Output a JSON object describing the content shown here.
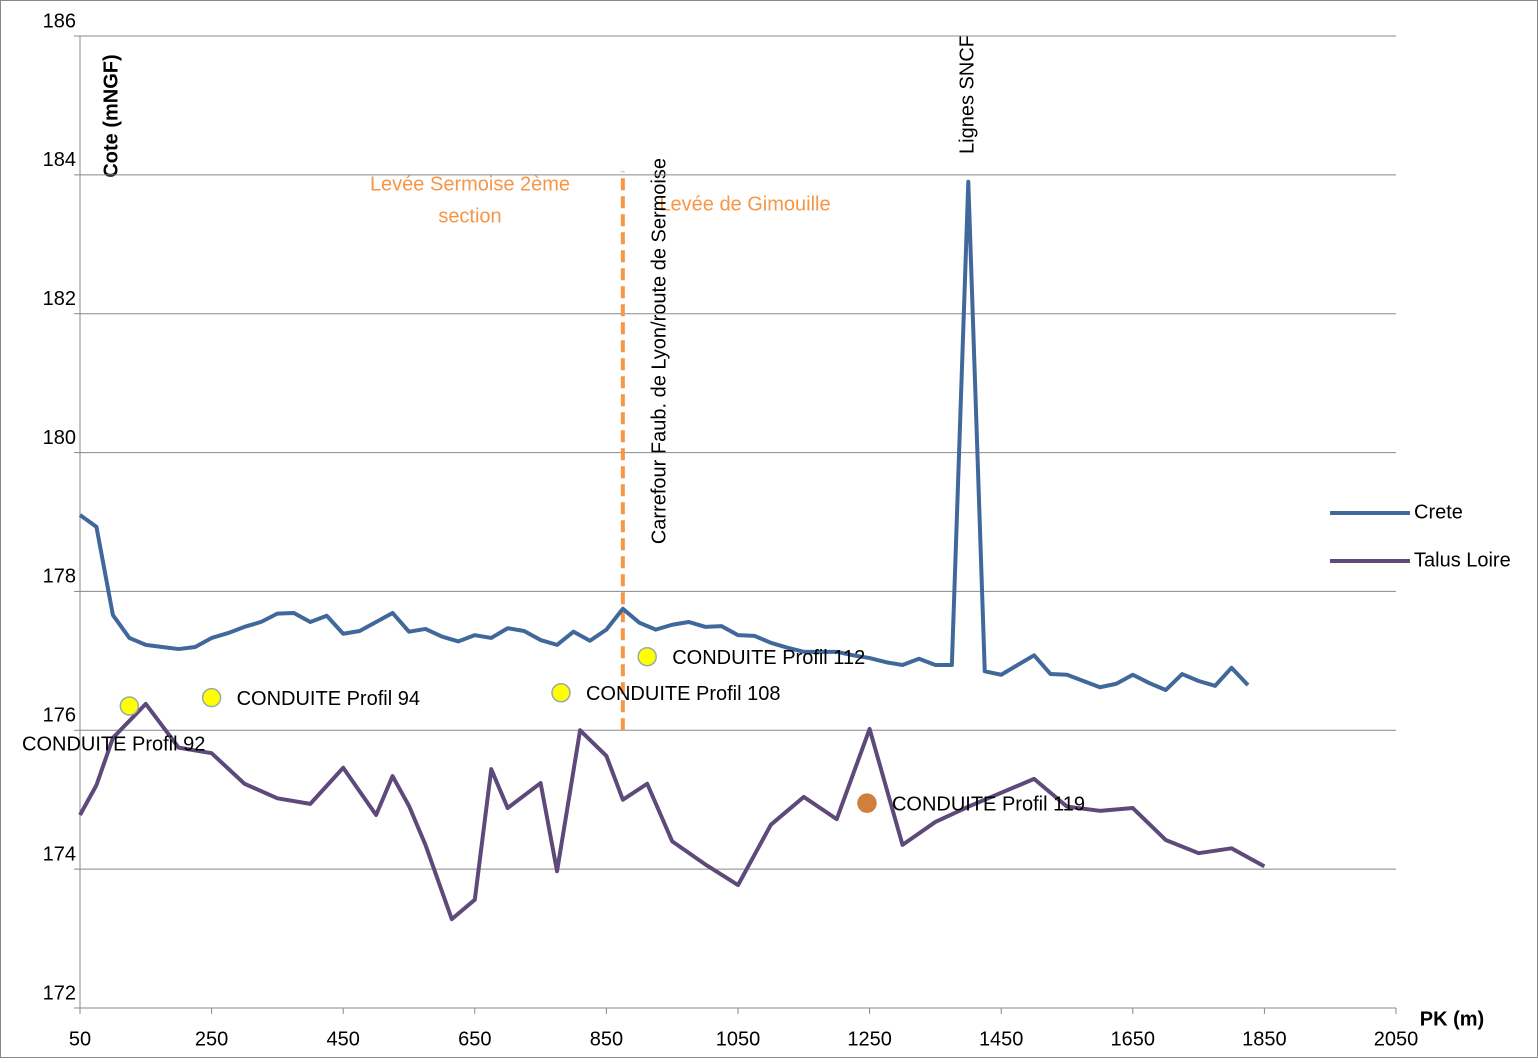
{
  "chart_data": {
    "type": "line",
    "y_label": "Cote (mNGF)",
    "x_label": "PK (m)",
    "xlim": [
      50,
      2050
    ],
    "xticks": [
      50,
      250,
      450,
      650,
      850,
      1050,
      1250,
      1450,
      1650,
      1850,
      2050
    ],
    "ylim": [
      172,
      186
    ],
    "yticks": [
      172,
      174,
      176,
      178,
      180,
      182,
      184,
      186
    ],
    "grid": true,
    "legend": "right",
    "series": [
      {
        "name": "Crete",
        "color": "#41689a",
        "x": [
          50,
          75,
          100,
          125,
          150,
          175,
          200,
          225,
          250,
          275,
          300,
          325,
          350,
          375,
          400,
          425,
          450,
          475,
          500,
          525,
          550,
          575,
          600,
          625,
          650,
          675,
          700,
          725,
          750,
          775,
          800,
          825,
          850,
          875,
          900,
          925,
          950,
          975,
          1000,
          1025,
          1050,
          1075,
          1100,
          1125,
          1150,
          1175,
          1200,
          1225,
          1250,
          1275,
          1300,
          1325,
          1350,
          1375,
          1400,
          1425,
          1450,
          1475,
          1500,
          1525,
          1550,
          1575,
          1600,
          1625,
          1650,
          1675,
          1700,
          1725,
          1750,
          1775,
          1800,
          1825
        ],
        "values": [
          179.1,
          178.93,
          177.66,
          177.33,
          177.23,
          177.2,
          177.17,
          177.2,
          177.33,
          177.4,
          177.49,
          177.56,
          177.68,
          177.69,
          177.56,
          177.65,
          177.39,
          177.43,
          177.56,
          177.69,
          177.42,
          177.46,
          177.35,
          177.28,
          177.37,
          177.33,
          177.47,
          177.43,
          177.3,
          177.23,
          177.42,
          177.29,
          177.45,
          177.75,
          177.55,
          177.45,
          177.52,
          177.56,
          177.49,
          177.5,
          177.37,
          177.36,
          177.26,
          177.19,
          177.13,
          177.13,
          177.13,
          177.08,
          177.04,
          176.98,
          176.94,
          177.03,
          176.94,
          176.94,
          183.9,
          176.85,
          176.8,
          176.94,
          177.08,
          176.81,
          176.8,
          176.71,
          176.62,
          176.67,
          176.8,
          176.68,
          176.58,
          176.81,
          176.71,
          176.64,
          176.9,
          176.65
        ]
      },
      {
        "name": "Talus Loire",
        "color": "#5e4a7a",
        "x": [
          50,
          75,
          100,
          150,
          200,
          250,
          300,
          350,
          400,
          450,
          500,
          525,
          550,
          575,
          615,
          650,
          675,
          700,
          750,
          775,
          810,
          850,
          875,
          912,
          950,
          1000,
          1050,
          1100,
          1150,
          1200,
          1250,
          1300,
          1350,
          1400,
          1500,
          1550,
          1600,
          1650,
          1700,
          1750,
          1800,
          1850
        ],
        "values": [
          174.78,
          175.21,
          175.89,
          176.38,
          175.75,
          175.67,
          175.23,
          175.02,
          174.94,
          175.46,
          174.78,
          175.34,
          174.91,
          174.35,
          173.28,
          173.56,
          175.44,
          174.88,
          175.24,
          173.97,
          176.0,
          175.63,
          175.0,
          175.23,
          174.4,
          174.07,
          173.77,
          174.64,
          175.04,
          174.72,
          176.02,
          174.35,
          174.68,
          174.9,
          175.3,
          174.9,
          174.84,
          174.88,
          174.42,
          174.23,
          174.3,
          174.04
        ]
      }
    ],
    "points": [
      {
        "label": "CONDUITE Profil 92",
        "x": 125,
        "y": 176.35,
        "color": "#ffff00"
      },
      {
        "label": "CONDUITE Profil 94",
        "x": 250,
        "y": 176.47,
        "color": "#ffff00"
      },
      {
        "label": "CONDUITE Profil 108",
        "x": 781,
        "y": 176.54,
        "color": "#ffff00"
      },
      {
        "label": "CONDUITE Profil 112",
        "x": 912,
        "y": 177.06,
        "color": "#ffff00"
      },
      {
        "label": "CONDUITE Profil 119",
        "x": 1246,
        "y": 174.95,
        "color": "#d07f3c"
      }
    ],
    "vline": {
      "x": 875,
      "y": [
        176.0,
        184.05
      ],
      "color": "#f79646"
    },
    "annotations": [
      "Levée Sermoise 2ème",
      "section",
      "Levée de Gimouille",
      "Carrefour Faub. de Lyon/route de Sermoise",
      "Lignes SNCF"
    ]
  }
}
